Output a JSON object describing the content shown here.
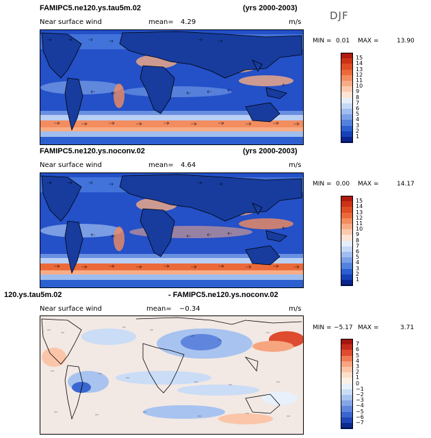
{
  "season": "DJF",
  "panels": [
    {
      "title_left": "FAMIPC5.ne120.ys.tau5m.02",
      "title_right": "(yrs 2000-2003)",
      "field": "Near surface wind",
      "mean_label": "mean=",
      "mean_value": "4.29",
      "units": "m/s",
      "min_label": "MIN =",
      "min_value": "0.01",
      "max_label": "MAX =",
      "max_value": "13.90",
      "colorbar": {
        "labels": [
          "15",
          "14",
          "13",
          "12",
          "11",
          "10",
          "9",
          "8",
          "7",
          "6",
          "5",
          "4",
          "3",
          "2",
          "1"
        ],
        "colors": [
          "#b01a10",
          "#cc3316",
          "#df4d24",
          "#ec6a3a",
          "#f38c5f",
          "#f8ac85",
          "#fbcbaf",
          "#fde4d4",
          "#e6eefb",
          "#c6d8f6",
          "#9fbdee",
          "#7aa0e6",
          "#5382dd",
          "#2c5fd0",
          "#1540b8",
          "#0a248f"
        ]
      }
    },
    {
      "title_left": "FAMIPC5.ne120.ys.noconv.02",
      "title_right": "(yrs 2000-2003)",
      "field": "Near surface wind",
      "mean_label": "mean=",
      "mean_value": "4.64",
      "units": "m/s",
      "min_label": "MIN =",
      "min_value": "0.00",
      "max_label": "MAX =",
      "max_value": "14.17",
      "colorbar": {
        "labels": [
          "15",
          "14",
          "13",
          "12",
          "11",
          "10",
          "9",
          "8",
          "7",
          "6",
          "5",
          "4",
          "3",
          "2",
          "1"
        ],
        "colors": [
          "#b01a10",
          "#cc3316",
          "#df4d24",
          "#ec6a3a",
          "#f38c5f",
          "#f8ac85",
          "#fbcbaf",
          "#fde4d4",
          "#e6eefb",
          "#c6d8f6",
          "#9fbdee",
          "#7aa0e6",
          "#5382dd",
          "#2c5fd0",
          "#1540b8",
          "#0a248f"
        ]
      }
    },
    {
      "title_left": "120.ys.tau5m.02",
      "title_right": "- FAMIPC5.ne120.ys.noconv.02",
      "field": "Near surface wind",
      "mean_label": "mean=",
      "mean_value": "−0.34",
      "units": "m/s",
      "min_label": "MIN =",
      "min_value": "−5.17",
      "max_label": "MAX =",
      "max_value": "3.71",
      "colorbar": {
        "labels": [
          "7",
          "6",
          "5",
          "4",
          "3",
          "2",
          "1",
          "0",
          "−1",
          "−2",
          "−3",
          "−4",
          "−5",
          "−6",
          "−7"
        ],
        "colors": [
          "#a3150f",
          "#c52a1c",
          "#de4b2e",
          "#ef7a55",
          "#f6a57f",
          "#fac5a8",
          "#fde0cc",
          "#fdf0e6",
          "#e8f0fb",
          "#cadcf6",
          "#a8c3ef",
          "#84a6e6",
          "#5f86dc",
          "#3a66cf",
          "#1e46b8",
          "#0b2a8f"
        ]
      }
    }
  ],
  "chart_data": {
    "type": "heatmap",
    "title": "DJF Near surface wind (m/s), years 2000-2003",
    "maps": [
      {
        "case": "FAMIPC5.ne120.ys.tau5m.02",
        "mean": 4.29,
        "min": 0.01,
        "max": 13.9,
        "colorbar_range": [
          1,
          15
        ],
        "colorbar_step": 1
      },
      {
        "case": "FAMIPC5.ne120.ys.noconv.02",
        "mean": 4.64,
        "min": 0.0,
        "max": 14.17,
        "colorbar_range": [
          1,
          15
        ],
        "colorbar_step": 1
      },
      {
        "case": "difference (tau5m - noconv)",
        "mean": -0.34,
        "min": -5.17,
        "max": 3.71,
        "colorbar_range": [
          -7,
          7
        ],
        "colorbar_step": 1
      }
    ]
  }
}
